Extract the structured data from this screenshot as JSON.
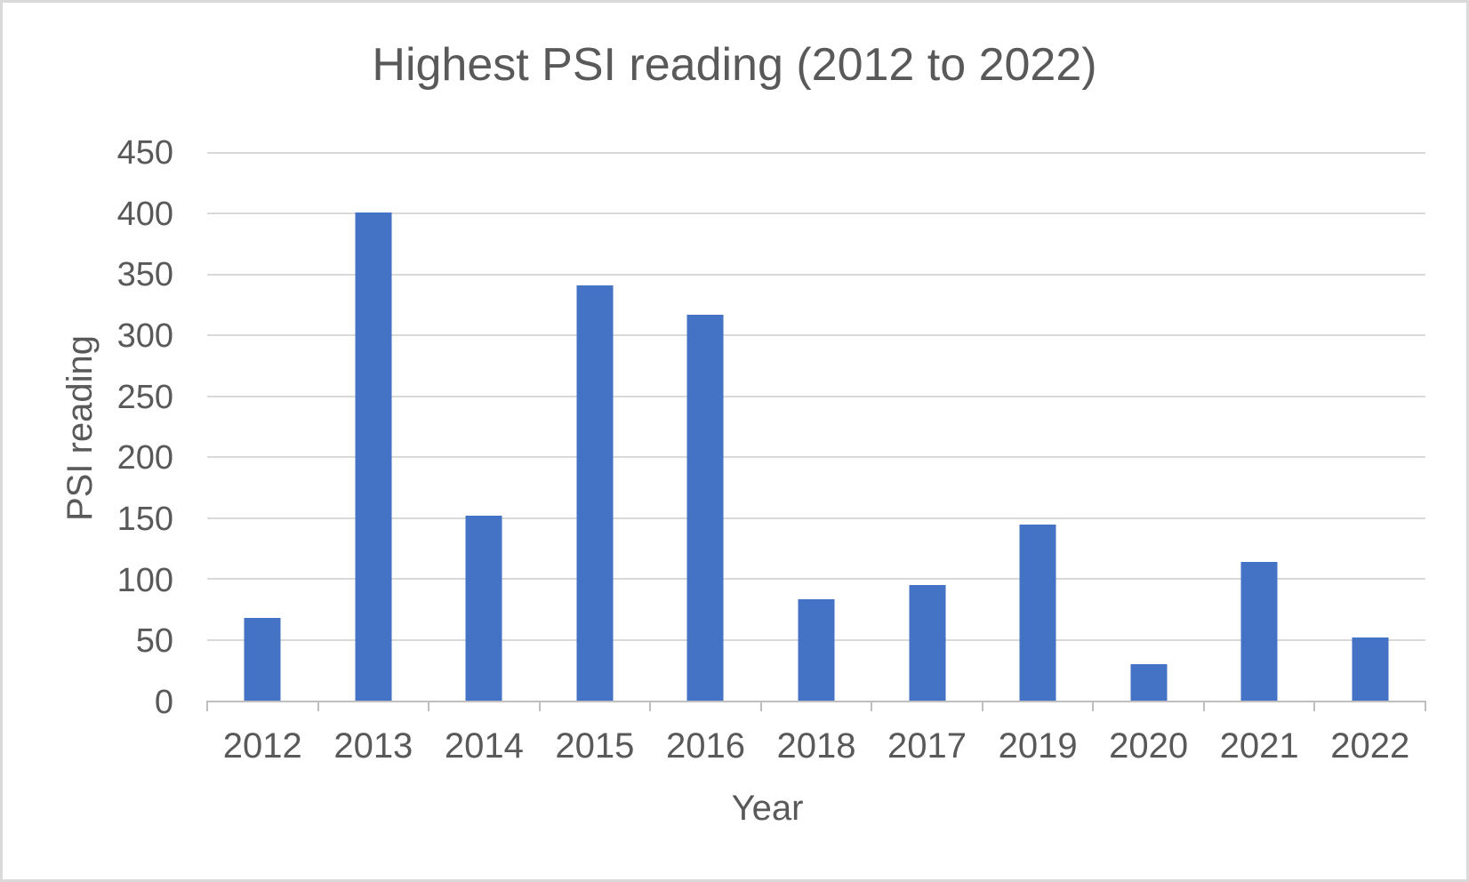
{
  "chart_data": {
    "type": "bar",
    "title": "Highest PSI reading (2012 to 2022)",
    "xlabel": "Year",
    "ylabel": "PSI reading",
    "categories": [
      "2012",
      "2013",
      "2014",
      "2015",
      "2016",
      "2018",
      "2017",
      "2019",
      "2020",
      "2021",
      "2022"
    ],
    "values": [
      68,
      401,
      152,
      341,
      317,
      83,
      95,
      145,
      30,
      114,
      52
    ],
    "ylim": [
      0,
      450
    ],
    "ytick_step": 50,
    "yticks": [
      0,
      50,
      100,
      150,
      200,
      250,
      300,
      350,
      400,
      450
    ],
    "grid": true,
    "legend": "none",
    "colors": {
      "bar": "#4472C4",
      "gridline": "#D9D9D9",
      "axis_line": "#BFBFBF",
      "text": "#595959",
      "background": "#FFFFFF",
      "frame_border": "#D9D9D9"
    }
  }
}
